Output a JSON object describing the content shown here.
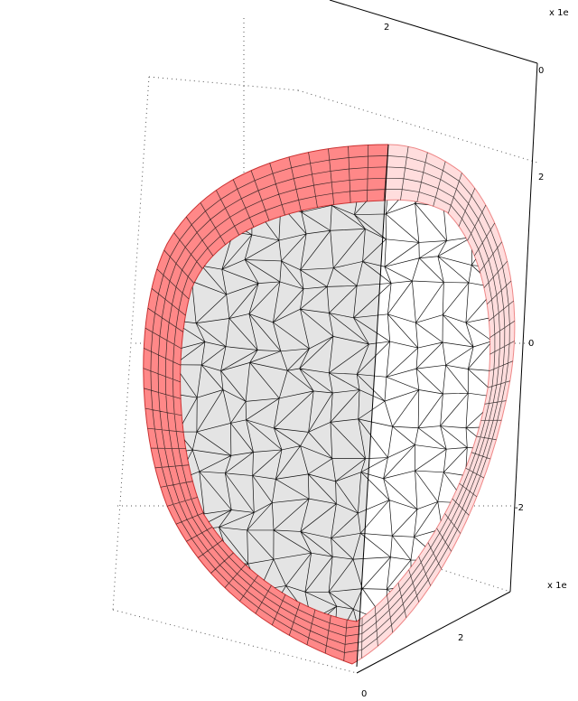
{
  "axes": {
    "labels": [
      "x 1e",
      "2",
      "0",
      "2",
      "0",
      "-2",
      "x 1e",
      "2",
      "0"
    ]
  }
}
